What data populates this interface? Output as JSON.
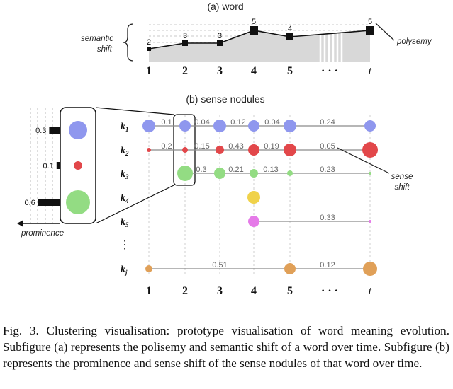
{
  "panel_a": {
    "title": "(a) word",
    "left_label_line1": "semantic",
    "left_label_line2": "shift",
    "right_label": "polysemy",
    "points": [
      {
        "label": "2",
        "polysemy": 2
      },
      {
        "label": "3",
        "polysemy": 3
      },
      {
        "label": "3",
        "polysemy": 3
      },
      {
        "label": "5",
        "polysemy": 5
      },
      {
        "label": "4",
        "polysemy": 4
      },
      {
        "label": "5",
        "polysemy": 5
      }
    ]
  },
  "panel_b": {
    "title": "(b) sense nodules",
    "prominence_label": "prominence",
    "sense_shift_line1": "sense",
    "sense_shift_line2": "shift",
    "prominence_values": [
      "0.3",
      "0.1",
      "0.6"
    ],
    "vertical_dots": "⋮",
    "rows": [
      {
        "name": "k",
        "sub": "1",
        "color": "#8f97ee",
        "shift_labels": [
          "0.1",
          "0.04",
          "0.12",
          "0.04",
          "0.24"
        ]
      },
      {
        "name": "k",
        "sub": "2",
        "color": "#e2474a",
        "shift_labels": [
          "0.2",
          "0.15",
          "0.43",
          "0.19",
          "0.05"
        ]
      },
      {
        "name": "k",
        "sub": "3",
        "color": "#93dc83",
        "shift_labels": [
          "0.3",
          "0.21",
          "0.13",
          "0.23"
        ]
      },
      {
        "name": "k",
        "sub": "4",
        "color": "#f0d24a",
        "shift_labels": []
      },
      {
        "name": "k",
        "sub": "5",
        "color": "#e57ae8",
        "shift_labels": [
          "0.33"
        ]
      },
      {
        "name": "k",
        "sub": "j",
        "color": "#e0a058",
        "shift_labels": [
          "0.51",
          "0.12"
        ]
      }
    ]
  },
  "time_axis": [
    "1",
    "2",
    "3",
    "4",
    "5",
    "· · ·",
    "t"
  ],
  "caption": "Fig. 3.   Clustering visualisation: prototype visualisation of word meaning evolution. Subfigure (a) represents the polisemy and semantic shift of a word over time. Subfigure (b) represents the prominence and sense shift of the sense nodules of that word over time."
}
